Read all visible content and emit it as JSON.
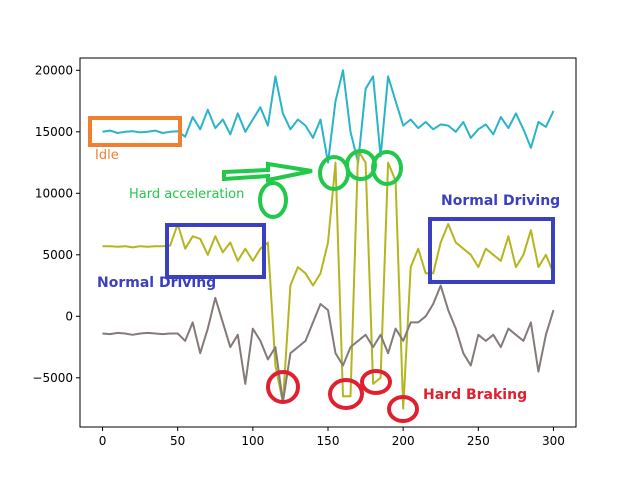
{
  "chart_data": {
    "type": "line",
    "title": "",
    "xlabel": "",
    "ylabel": "",
    "xlim": [
      -15,
      315
    ],
    "ylim": [
      -9000,
      21000
    ],
    "xticks": [
      0,
      50,
      100,
      150,
      200,
      250,
      300
    ],
    "yticks": [
      -5000,
      0,
      5000,
      10000,
      15000,
      20000
    ],
    "xtick_labels": [
      "0",
      "50",
      "100",
      "150",
      "200",
      "250",
      "300"
    ],
    "ytick_labels": [
      "−5000",
      "0",
      "5000",
      "10000",
      "15000",
      "20000"
    ],
    "grid": false,
    "x_step": 5,
    "series": [
      {
        "name": "cyan",
        "color": "#2ab4c8",
        "values": [
          15000,
          15100,
          14900,
          15000,
          15050,
          14950,
          15000,
          15100,
          14900,
          15000,
          15050,
          14600,
          16200,
          15200,
          16800,
          15300,
          16000,
          14800,
          16500,
          15000,
          16000,
          17000,
          15500,
          19500,
          16500,
          15200,
          16000,
          15500,
          14500,
          16000,
          12500,
          17500,
          20000,
          15000,
          12500,
          18500,
          19500,
          13000,
          19500,
          17500,
          15500,
          16000,
          15300,
          15800,
          15200,
          15600,
          15500,
          15000,
          15800,
          14500,
          15200,
          15600,
          14800,
          16200,
          15300,
          16500,
          15200,
          13700,
          15800,
          15400,
          16700
        ]
      },
      {
        "name": "olive",
        "color": "#b5b520",
        "values": [
          5700,
          5700,
          5650,
          5700,
          5600,
          5700,
          5650,
          5700,
          5700,
          5750,
          7500,
          5500,
          6500,
          6300,
          5000,
          6500,
          5200,
          6000,
          4500,
          5500,
          4500,
          5500,
          6000,
          -4000,
          -7000,
          2500,
          4000,
          3500,
          2500,
          3500,
          6000,
          12500,
          -6500,
          -6500,
          13500,
          12500,
          -5500,
          -5000,
          12500,
          11000,
          -7500,
          4000,
          5500,
          3500,
          3500,
          6000,
          7500,
          6000,
          5500,
          5000,
          4000,
          5500,
          5000,
          4500,
          6500,
          4000,
          5000,
          7000,
          4000,
          5000,
          3500
        ]
      },
      {
        "name": "gray",
        "color": "#847a78",
        "values": [
          -1400,
          -1450,
          -1350,
          -1400,
          -1500,
          -1400,
          -1350,
          -1400,
          -1450,
          -1400,
          -1400,
          -2000,
          -500,
          -3000,
          -1000,
          1500,
          -500,
          -2500,
          -1500,
          -5500,
          -1000,
          -2000,
          -3500,
          -2500,
          -7000,
          -3000,
          -2500,
          -2000,
          -500,
          1000,
          500,
          -3000,
          -4000,
          -2500,
          -2000,
          -1500,
          -2500,
          -1500,
          -3000,
          -1000,
          -2000,
          -500,
          -500,
          0,
          1000,
          2500,
          500,
          -1000,
          -3000,
          -4000,
          -1500,
          -2000,
          -1500,
          -2500,
          -1000,
          -1500,
          -2000,
          -500,
          -4500,
          -1500,
          500
        ]
      }
    ],
    "annotations": {
      "idle": {
        "text": "Idle",
        "color": "#f08030"
      },
      "hard_acceleration": {
        "text": "Hard acceleration",
        "color": "#22c84a"
      },
      "normal_driving_left": {
        "text": "Normal Driving",
        "color": "#3a40c0"
      },
      "normal_driving_right": {
        "text": "Normal Driving",
        "color": "#3a40c0"
      },
      "hard_braking": {
        "text": "Hard Braking",
        "color": "#e02030"
      }
    }
  }
}
